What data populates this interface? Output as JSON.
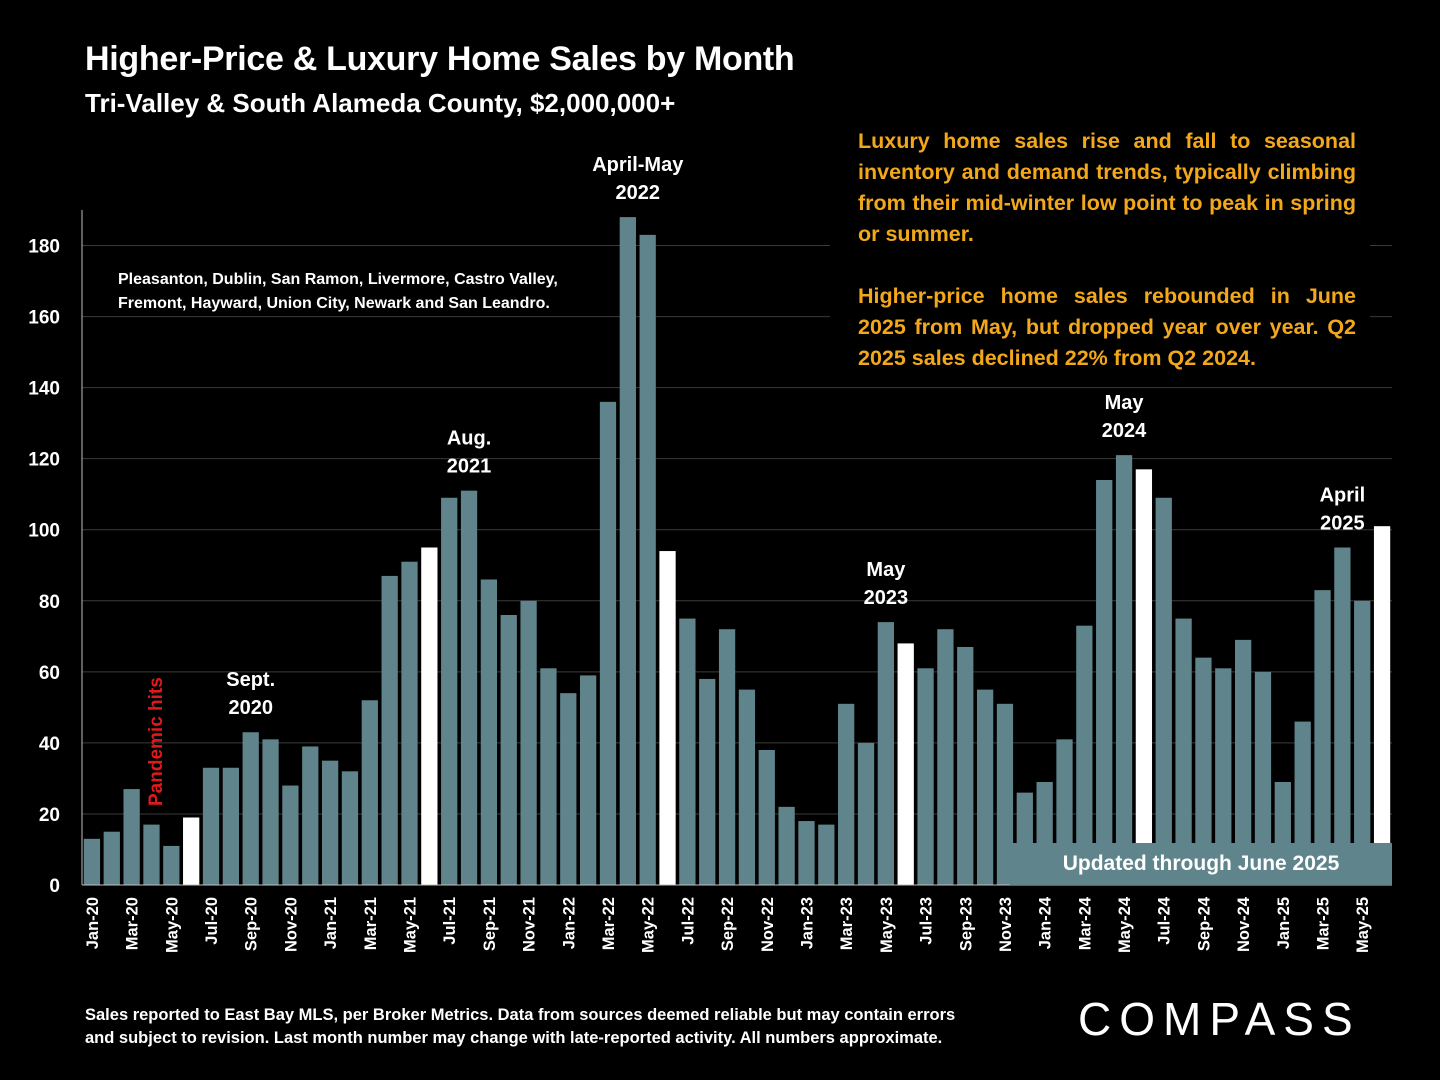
{
  "header": {
    "title": "Higher-Price & Luxury Home Sales by Month",
    "subtitle": "Tri-Valley & South Alameda County, $2,000,000+"
  },
  "commentary": {
    "p1": "Luxury home sales rise and fall to seasonal inventory and demand trends, typically climbing from their mid-winter low point to peak in spring or summer.",
    "p2": "Higher-price home sales rebounded in June 2025 from May, but dropped year over year. Q2 2025 sales declined 22% from Q2 2024."
  },
  "badge": {
    "updated": "Updated through June 2025"
  },
  "footer": {
    "note_line1": "Sales reported to East Bay MLS, per Broker Metrics. Data from sources deemed reliable but may contain errors",
    "note_line2": "and subject to revision. Last month number may change with late-reported activity. All numbers approximate.",
    "logo": "COMPASS"
  },
  "colors": {
    "bar": "#5f848b",
    "highlight": "#ffffff",
    "background": "#000000",
    "commentary": "#f3a81b",
    "pandemic": "#e0191b"
  },
  "chart_data": {
    "type": "bar",
    "title": "Higher-Price & Luxury Home Sales by Month",
    "ylim": [
      0,
      190
    ],
    "yticks": [
      0,
      20,
      40,
      60,
      80,
      100,
      120,
      140,
      160,
      180
    ],
    "grid": true,
    "categories": [
      "Jan-20",
      "Feb-20",
      "Mar-20",
      "Apr-20",
      "May-20",
      "Jun-20",
      "Jul-20",
      "Aug-20",
      "Sep-20",
      "Oct-20",
      "Nov-20",
      "Dec-20",
      "Jan-21",
      "Feb-21",
      "Mar-21",
      "Apr-21",
      "May-21",
      "Jun-21",
      "Jul-21",
      "Aug-21",
      "Sep-21",
      "Oct-21",
      "Nov-21",
      "Dec-21",
      "Jan-22",
      "Feb-22",
      "Mar-22",
      "Apr-22",
      "May-22",
      "Jun-22",
      "Jul-22",
      "Aug-22",
      "Sep-22",
      "Oct-22",
      "Nov-22",
      "Dec-22",
      "Jan-23",
      "Feb-23",
      "Mar-23",
      "Apr-23",
      "May-23",
      "Jun-23",
      "Jul-23",
      "Aug-23",
      "Sep-23",
      "Oct-23",
      "Nov-23",
      "Dec-23",
      "Jan-24",
      "Feb-24",
      "Mar-24",
      "Apr-24",
      "May-24",
      "Jun-24",
      "Jul-24",
      "Aug-24",
      "Sep-24",
      "Oct-24",
      "Nov-24",
      "Dec-24",
      "Jan-25",
      "Feb-25",
      "Mar-25",
      "Apr-25",
      "May-25",
      "Jun-25"
    ],
    "xtick_labels": [
      "Jan-20",
      "Mar-20",
      "May-20",
      "Jul-20",
      "Sep-20",
      "Nov-20",
      "Jan-21",
      "Mar-21",
      "May-21",
      "Jul-21",
      "Sep-21",
      "Nov-21",
      "Jan-22",
      "Mar-22",
      "May-22",
      "Jul-22",
      "Sep-22",
      "Nov-22",
      "Jan-23",
      "Mar-23",
      "May-23",
      "Jul-23",
      "Sep-23",
      "Nov-23",
      "Jan-24",
      "Mar-24",
      "May-24",
      "Jul-24",
      "Sep-24",
      "Nov-24",
      "Jan-25",
      "Mar-25",
      "May-25"
    ],
    "values": [
      13,
      15,
      27,
      17,
      11,
      19,
      33,
      33,
      43,
      41,
      28,
      39,
      35,
      32,
      52,
      87,
      91,
      95,
      109,
      111,
      86,
      76,
      80,
      61,
      54,
      59,
      136,
      188,
      183,
      94,
      75,
      58,
      72,
      55,
      38,
      22,
      18,
      17,
      51,
      40,
      74,
      68,
      61,
      72,
      67,
      55,
      51,
      26,
      29,
      41,
      73,
      114,
      121,
      117,
      109,
      75,
      64,
      61,
      69,
      60,
      29,
      46,
      83,
      95,
      80,
      101
    ],
    "highlighted": [
      "Jun-20",
      "Jun-21",
      "Jun-22",
      "Jun-23",
      "Jun-24",
      "Jun-25"
    ],
    "annotations": [
      {
        "label_line1": "Sept.",
        "label_line2": "2020",
        "category": "Sep-20"
      },
      {
        "label_line1": "Aug.",
        "label_line2": "2021",
        "category": "Aug-21"
      },
      {
        "label_line1": "April-May",
        "label_line2": "2022",
        "category": "Apr-22"
      },
      {
        "label_line1": "May",
        "label_line2": "2023",
        "category": "May-23"
      },
      {
        "label_line1": "May",
        "label_line2": "2024",
        "category": "May-24"
      },
      {
        "label_line1": "April",
        "label_line2": "2025",
        "category": "Apr-25"
      }
    ],
    "pandemic_label": "Pandemic hits",
    "region_note_line1": "Pleasanton, Dublin, San Ramon, Livermore, Castro Valley,",
    "region_note_line2": "Fremont, Hayward, Union City, Newark and San Leandro."
  }
}
